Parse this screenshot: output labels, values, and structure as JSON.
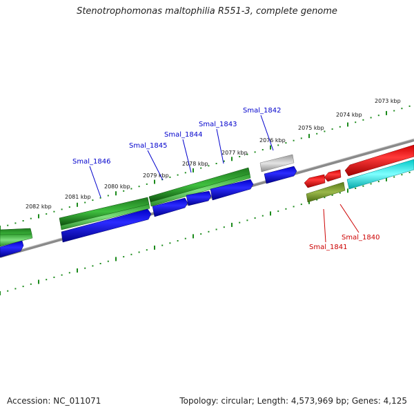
{
  "title": "Stenotrophomonas maltophilia R551-3, complete genome",
  "footer": {
    "accession": "Accession: NC_011071",
    "summary": "Topology: circular; Length: 4,573,969 bp; Genes: 4,125"
  },
  "colors": {
    "backbone": "#808080",
    "tick": "#1a8a1a",
    "label_forward": "#0000cc",
    "label_reverse": "#cc0000"
  },
  "scale_labels": [
    "2082 kbp",
    "2081 kbp",
    "2080 kbp",
    "2079 kbp",
    "2078 kbp",
    "2077 kbp",
    "2076 kbp",
    "2075 kbp",
    "2074 kbp",
    "2073 kbp"
  ],
  "gene_labels": [
    {
      "text": "Smal_1846",
      "strand": "forward"
    },
    {
      "text": "Smal_1845",
      "strand": "forward"
    },
    {
      "text": "Smal_1844",
      "strand": "forward"
    },
    {
      "text": "Smal_1843",
      "strand": "forward"
    },
    {
      "text": "Smal_1842",
      "strand": "forward"
    },
    {
      "text": "Smal_1841",
      "strand": "reverse"
    },
    {
      "text": "Smal_1840",
      "strand": "reverse"
    }
  ]
}
